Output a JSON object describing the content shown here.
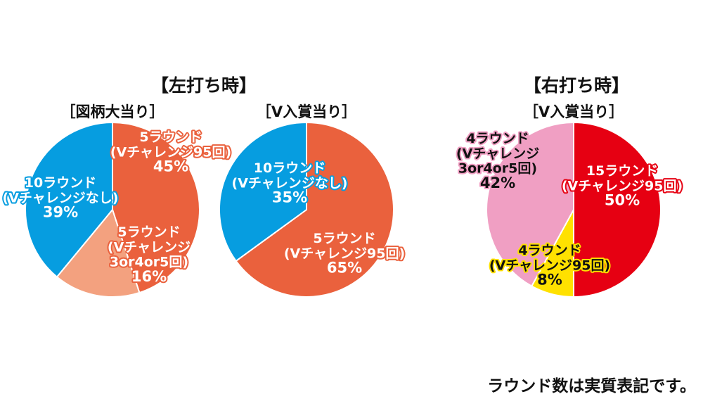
{
  "header_left": "【左打ち時】",
  "header_right": "【右打ち時】",
  "footnote": "ラウンド数は実質表記です。",
  "chart_data": [
    {
      "type": "pie",
      "title": "［図柄大当り］",
      "slices": [
        {
          "lines": [
            "5ラウンド",
            "(Vチャレンジ95回)",
            "45%"
          ],
          "value": 45,
          "color": "#ea613d",
          "text_color": "#ffffff",
          "outline_color": "#ea613d"
        },
        {
          "lines": [
            "5ラウンド",
            "(Vチャレンジ",
            "3or4or5回)",
            "16%"
          ],
          "value": 16,
          "color": "#f3a17f",
          "text_color": "#ffffff",
          "outline_color": "#ea613d"
        },
        {
          "lines": [
            "10ラウンド",
            "(Vチャレンジなし)",
            "39%"
          ],
          "value": 39,
          "color": "#069de0",
          "text_color": "#ffffff",
          "outline_color": "#069de0"
        }
      ]
    },
    {
      "type": "pie",
      "title": "［V入賞当り］",
      "slices": [
        {
          "lines": [
            "5ラウンド",
            "(Vチャレンジ95回)",
            "65%"
          ],
          "value": 65,
          "color": "#ea613d",
          "text_color": "#ffffff",
          "outline_color": "#ea613d"
        },
        {
          "lines": [
            "10ラウンド",
            "(Vチャレンジなし)",
            "35%"
          ],
          "value": 35,
          "color": "#069de0",
          "text_color": "#ffffff",
          "outline_color": "#069de0"
        }
      ]
    },
    {
      "type": "pie",
      "title": "［V入賞当り］",
      "slices": [
        {
          "lines": [
            "15ラウンド",
            "(Vチャレンジ95回)",
            "50%"
          ],
          "value": 50,
          "color": "#e60012",
          "text_color": "#ffffff",
          "outline_color": "#e60012"
        },
        {
          "lines": [
            "4ラウンド",
            "(Vチャレンジ95回)",
            "8%"
          ],
          "value": 8,
          "color": "#ffe100",
          "text_color": "#111111",
          "outline_color": "#ffe100"
        },
        {
          "lines": [
            "4ラウンド",
            "(Vチャレンジ",
            "3or4or5回)",
            "42%"
          ],
          "value": 42,
          "color": "#f09fc3",
          "text_color": "#111111",
          "outline_color": "#f09fc3"
        }
      ]
    }
  ]
}
